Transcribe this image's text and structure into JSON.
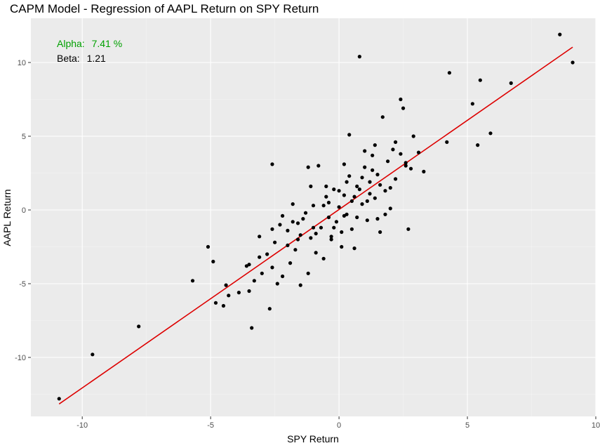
{
  "chart_data": {
    "type": "scatter",
    "title": "CAPM Model - Regression of AAPL Return on SPY Return",
    "xlabel": "SPY Return",
    "ylabel": "AAPL Return",
    "xlim": [
      -12,
      10
    ],
    "ylim": [
      -14,
      13
    ],
    "x_ticks": [
      -10,
      -5,
      0,
      5,
      10
    ],
    "y_ticks": [
      -10,
      -5,
      0,
      5,
      10
    ],
    "x_tick_labels": [
      "-10",
      "-5",
      "0",
      "5",
      "10"
    ],
    "y_tick_labels": [
      "-10",
      "-5",
      "0",
      "5",
      "10"
    ],
    "grid": true,
    "colors": {
      "panel_background": "#ebebeb",
      "grid_major": "#ffffff",
      "grid_minor": "#f5f5f5",
      "points": "#000000",
      "fit_line": "#dd0000",
      "alpha_text": "#00a000",
      "beta_text": "#000000"
    },
    "annotations": [
      {
        "label": "Alpha:",
        "value": "7.41 %"
      },
      {
        "label": "Beta:",
        "value": "1.21"
      }
    ],
    "regression": {
      "intercept": 0.03,
      "slope": 1.21,
      "x_range": [
        -10.9,
        9.1
      ]
    },
    "points": [
      [
        -10.9,
        -12.8
      ],
      [
        -9.6,
        -9.8
      ],
      [
        -7.8,
        -7.9
      ],
      [
        -5.7,
        -4.8
      ],
      [
        -5.1,
        -2.5
      ],
      [
        -4.9,
        -3.5
      ],
      [
        -4.8,
        -6.3
      ],
      [
        -4.5,
        -6.5
      ],
      [
        -4.4,
        -5.1
      ],
      [
        -4.3,
        -5.8
      ],
      [
        -3.9,
        -5.6
      ],
      [
        -3.6,
        -3.8
      ],
      [
        -3.5,
        -3.7
      ],
      [
        -3.5,
        -5.5
      ],
      [
        -3.4,
        -8.0
      ],
      [
        -3.3,
        -4.8
      ],
      [
        -3.1,
        -3.2
      ],
      [
        -3.0,
        -4.3
      ],
      [
        -2.8,
        -3.0
      ],
      [
        -2.7,
        -6.7
      ],
      [
        -2.6,
        -3.9
      ],
      [
        -2.5,
        -2.2
      ],
      [
        -2.4,
        -5.0
      ],
      [
        -2.3,
        -1.0
      ],
      [
        -2.2,
        -4.5
      ],
      [
        -2.0,
        -1.4
      ],
      [
        -1.9,
        -3.6
      ],
      [
        -1.8,
        -0.8
      ],
      [
        -1.6,
        -2.0
      ],
      [
        -1.5,
        -5.1
      ],
      [
        -1.4,
        -0.6
      ],
      [
        -1.2,
        -4.3
      ],
      [
        -1.1,
        -1.9
      ],
      [
        -1.0,
        0.3
      ],
      [
        -0.9,
        -2.9
      ],
      [
        -0.7,
        -1.2
      ],
      [
        -0.6,
        -3.3
      ],
      [
        -0.5,
        0.9
      ],
      [
        -0.4,
        -0.5
      ],
      [
        -0.3,
        -2.0
      ],
      [
        -0.2,
        1.4
      ],
      [
        -0.1,
        -0.8
      ],
      [
        0.0,
        0.2
      ],
      [
        0.1,
        -1.5
      ],
      [
        0.2,
        1.0
      ],
      [
        0.3,
        -0.3
      ],
      [
        0.4,
        2.3
      ],
      [
        0.5,
        0.6
      ],
      [
        0.6,
        -2.6
      ],
      [
        0.7,
        1.6
      ],
      [
        0.8,
        10.4
      ],
      [
        0.9,
        0.4
      ],
      [
        1.0,
        2.9
      ],
      [
        1.1,
        -0.7
      ],
      [
        1.2,
        1.9
      ],
      [
        1.3,
        3.7
      ],
      [
        1.4,
        0.8
      ],
      [
        1.5,
        2.4
      ],
      [
        1.6,
        -1.5
      ],
      [
        1.7,
        6.3
      ],
      [
        1.8,
        1.3
      ],
      [
        1.9,
        3.3
      ],
      [
        2.0,
        0.1
      ],
      [
        2.1,
        4.1
      ],
      [
        2.2,
        2.1
      ],
      [
        2.4,
        7.5
      ],
      [
        2.5,
        6.9
      ],
      [
        2.6,
        3.0
      ],
      [
        2.7,
        -1.3
      ],
      [
        2.9,
        5.0
      ],
      [
        3.1,
        3.9
      ],
      [
        3.3,
        2.6
      ],
      [
        4.2,
        4.6
      ],
      [
        4.3,
        9.3
      ],
      [
        5.2,
        7.2
      ],
      [
        5.4,
        4.4
      ],
      [
        5.5,
        8.8
      ],
      [
        5.9,
        5.2
      ],
      [
        6.7,
        8.6
      ],
      [
        8.6,
        11.9
      ],
      [
        9.1,
        10.0
      ],
      [
        -2.6,
        3.1
      ],
      [
        -1.2,
        2.9
      ],
      [
        0.4,
        5.1
      ],
      [
        -0.8,
        3.0
      ],
      [
        -1.1,
        1.6
      ],
      [
        -1.8,
        0.4
      ],
      [
        -2.2,
        -0.4
      ],
      [
        -0.5,
        1.6
      ],
      [
        0.2,
        3.1
      ],
      [
        1.0,
        4.0
      ],
      [
        1.4,
        4.4
      ],
      [
        2.2,
        4.6
      ],
      [
        2.4,
        3.8
      ],
      [
        2.8,
        2.8
      ],
      [
        -0.9,
        -1.6
      ],
      [
        -1.5,
        -1.7
      ],
      [
        -1.7,
        -2.7
      ],
      [
        -2.6,
        -1.3
      ],
      [
        -3.1,
        -1.8
      ],
      [
        -0.3,
        -1.8
      ],
      [
        0.1,
        -2.5
      ],
      [
        0.5,
        -1.3
      ],
      [
        1.5,
        -0.6
      ],
      [
        1.8,
        -0.3
      ],
      [
        0.7,
        -0.5
      ],
      [
        1.1,
        0.6
      ],
      [
        -0.6,
        0.3
      ],
      [
        0.3,
        1.9
      ],
      [
        0.9,
        2.2
      ],
      [
        -1.3,
        -0.2
      ],
      [
        -0.2,
        -1.2
      ],
      [
        0.6,
        0.9
      ],
      [
        1.6,
        1.7
      ],
      [
        2.0,
        1.5
      ],
      [
        -2.0,
        -2.4
      ],
      [
        -1.0,
        -1.2
      ],
      [
        0.0,
        1.3
      ],
      [
        1.3,
        2.7
      ],
      [
        2.6,
        3.2
      ],
      [
        -0.4,
        0.5
      ],
      [
        0.2,
        -0.4
      ],
      [
        1.2,
        1.1
      ],
      [
        -1.6,
        -0.9
      ],
      [
        0.8,
        1.4
      ]
    ]
  }
}
